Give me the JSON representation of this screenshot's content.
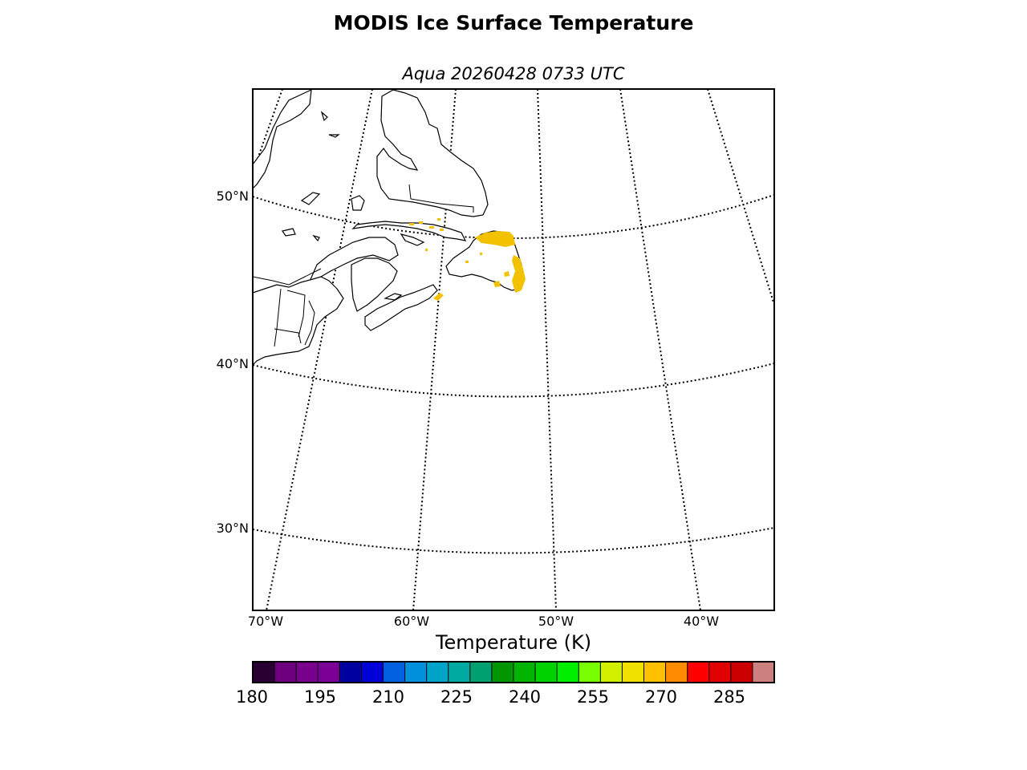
{
  "title": "MODIS Ice Surface Temperature",
  "subtitle": "Aqua 20260428 0733 UTC",
  "lat_labels": [
    {
      "text": "50°N",
      "value": 50
    },
    {
      "text": "40°N",
      "value": 40
    },
    {
      "text": "30°N",
      "value": 30
    }
  ],
  "lon_labels": [
    {
      "text": "70°W",
      "value": -70
    },
    {
      "text": "60°W",
      "value": -60
    },
    {
      "text": "50°W",
      "value": -50
    },
    {
      "text": "40°W",
      "value": -40
    }
  ],
  "colorbar": {
    "label": "Temperature (K)",
    "min": 180,
    "max": 295,
    "ticks": [
      "180",
      "195",
      "210",
      "225",
      "240",
      "255",
      "270",
      "285"
    ],
    "colors": [
      "#2a0033",
      "#6e0080",
      "#78008c",
      "#7a0096",
      "#0000a0",
      "#0000d8",
      "#0060e0",
      "#0090dc",
      "#00a4c8",
      "#00aaa0",
      "#00a070",
      "#009600",
      "#00b400",
      "#00d200",
      "#00f000",
      "#78ff00",
      "#d0f000",
      "#f0e000",
      "#ffc000",
      "#ff8c00",
      "#ff0000",
      "#e00000",
      "#cc0000",
      "#cc8080"
    ]
  },
  "ice_color": "#f2c200"
}
